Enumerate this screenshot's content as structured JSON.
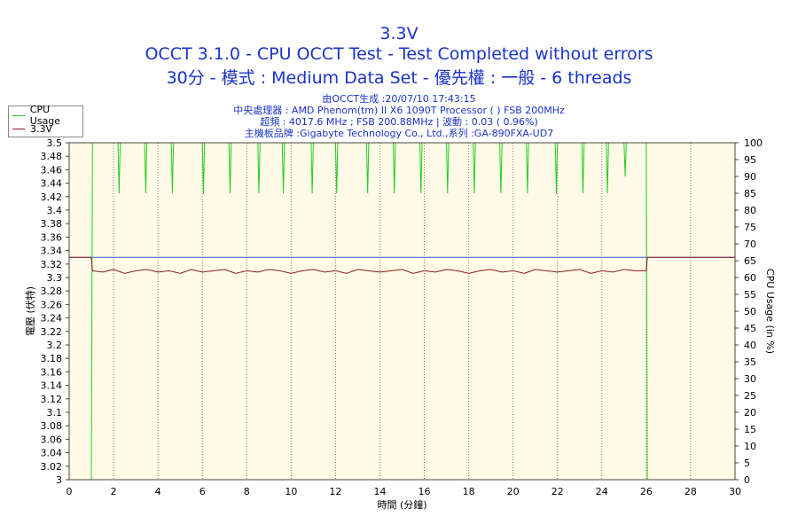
{
  "header": {
    "title": "3.3V",
    "subtitle1": "OCCT 3.1.0 - CPU OCCT Test - Test Completed without errors",
    "subtitle2": "30分 - 模式 : Medium Data Set - 優先權 : 一般 - 6 threads"
  },
  "info": {
    "generated": "由OCCT生成 :20/07/10 17:43:15",
    "cpu": "中央處理器 : AMD Phenom(tm) II X6 1090T Processor (  ) FSB 200MHz",
    "freq": "超頻 : 4017.6 MHz ; FSB 200.88MHz | 波動 : 0.03 ( 0.96%)",
    "board": "主機板品牌 :Gigabyte Technology Co., Ltd.,系列 :GA-890FXA-UD7"
  },
  "colors": {
    "title": "#1a33c8",
    "cpu_usage": "#22cc22",
    "voltage": "#8b1a1a",
    "plot_bg": "#fffbe6",
    "reference_line": "#3355ff"
  },
  "chart_data": {
    "type": "line",
    "xlabel": "時間 (分鐘)",
    "ylabel_left": "電壓 (伏特)",
    "ylabel_right": "CPU Usage (in %)",
    "xlim": [
      0,
      30
    ],
    "ylim_left": [
      3.0,
      3.5
    ],
    "ylim_right": [
      0,
      100
    ],
    "x_ticks": [
      0,
      2,
      4,
      6,
      8,
      10,
      12,
      14,
      16,
      18,
      20,
      22,
      24,
      26,
      28,
      30
    ],
    "y_left_ticks": [
      "3",
      "3.02",
      "3.04",
      "3.06",
      "3.08",
      "3.1",
      "3.12",
      "3.14",
      "3.16",
      "3.18",
      "3.2",
      "3.22",
      "3.24",
      "3.26",
      "3.28",
      "3.3",
      "3.32",
      "3.34",
      "3.36",
      "3.38",
      "3.4",
      "3.42",
      "3.44",
      "3.46",
      "3.48",
      "3.5"
    ],
    "y_right_ticks": [
      0,
      5,
      10,
      15,
      20,
      25,
      30,
      35,
      40,
      45,
      50,
      55,
      60,
      65,
      70,
      75,
      80,
      85,
      90,
      95,
      100
    ],
    "grid": true,
    "legend_position": "top-left",
    "reference_voltage": 3.33,
    "series": [
      {
        "name": "CPU Usage",
        "axis": "right",
        "x": [
          0,
          1.0,
          1.05,
          1.2,
          2.2,
          2.25,
          2.3,
          3.4,
          3.45,
          3.5,
          4.6,
          4.65,
          4.7,
          6.0,
          6.05,
          6.1,
          7.2,
          7.25,
          7.3,
          8.5,
          8.55,
          8.6,
          9.6,
          9.65,
          9.7,
          10.9,
          10.95,
          11.0,
          12.0,
          12.05,
          12.1,
          13.4,
          13.45,
          13.5,
          14.6,
          14.65,
          14.7,
          15.8,
          15.85,
          15.9,
          17.0,
          17.05,
          17.1,
          18.2,
          18.25,
          18.3,
          19.4,
          19.45,
          19.5,
          20.6,
          20.65,
          20.7,
          21.9,
          21.95,
          22.0,
          23.1,
          23.15,
          23.2,
          24.2,
          24.25,
          24.3,
          25.0,
          25.05,
          25.1,
          26.0,
          26.05,
          30
        ],
        "values": [
          0,
          0,
          100,
          100,
          100,
          85,
          100,
          100,
          85,
          100,
          100,
          85,
          100,
          100,
          85,
          100,
          100,
          85,
          100,
          100,
          85,
          100,
          100,
          85,
          100,
          100,
          85,
          100,
          100,
          85,
          100,
          100,
          85,
          100,
          100,
          85,
          100,
          100,
          85,
          100,
          100,
          85,
          100,
          100,
          85,
          100,
          100,
          85,
          100,
          100,
          85,
          100,
          100,
          85,
          100,
          100,
          85,
          100,
          100,
          85,
          100,
          100,
          90,
          100,
          100,
          0,
          0
        ]
      },
      {
        "name": "3.3V",
        "axis": "left",
        "x": [
          0,
          1.0,
          1.05,
          1.5,
          2.0,
          2.5,
          3.0,
          3.5,
          4.0,
          4.5,
          5.0,
          5.5,
          6.0,
          6.5,
          7.0,
          7.5,
          8.0,
          8.5,
          9.0,
          9.5,
          10.0,
          10.5,
          11.0,
          11.5,
          12.0,
          12.5,
          13.0,
          13.5,
          14.0,
          14.5,
          15.0,
          15.5,
          16.0,
          16.5,
          17.0,
          17.5,
          18.0,
          18.5,
          19.0,
          19.5,
          20.0,
          20.5,
          21.0,
          21.5,
          22.0,
          22.5,
          23.0,
          23.5,
          24.0,
          24.5,
          25.0,
          25.5,
          26.0,
          26.05,
          30
        ],
        "values": [
          3.33,
          3.33,
          3.31,
          3.308,
          3.312,
          3.306,
          3.31,
          3.312,
          3.308,
          3.31,
          3.306,
          3.312,
          3.308,
          3.31,
          3.312,
          3.306,
          3.31,
          3.308,
          3.312,
          3.31,
          3.306,
          3.31,
          3.312,
          3.308,
          3.31,
          3.306,
          3.312,
          3.31,
          3.308,
          3.31,
          3.312,
          3.306,
          3.31,
          3.308,
          3.312,
          3.31,
          3.306,
          3.31,
          3.312,
          3.308,
          3.31,
          3.306,
          3.312,
          3.31,
          3.308,
          3.31,
          3.312,
          3.306,
          3.31,
          3.308,
          3.312,
          3.31,
          3.31,
          3.33,
          3.33
        ]
      }
    ]
  }
}
